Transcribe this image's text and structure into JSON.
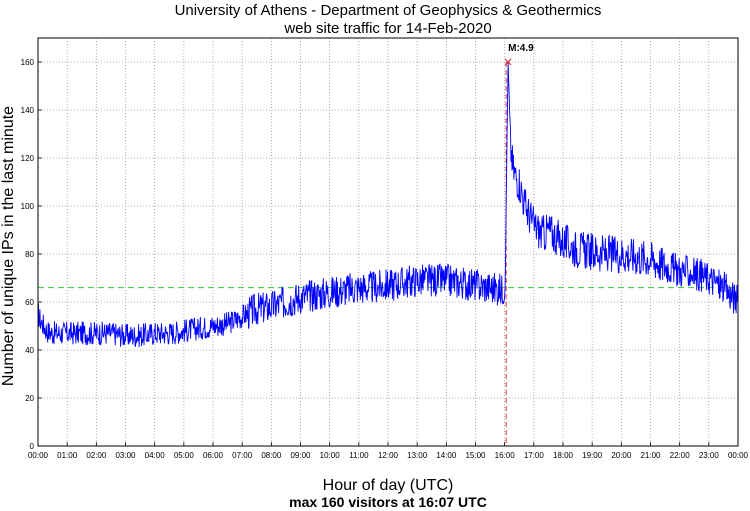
{
  "chart_data": {
    "type": "line",
    "title_lines": [
      "University of Athens - Department of Geophysics & Geothermics",
      "web site traffic for 14-Feb-2020"
    ],
    "xlabel": "Hour of day (UTC)",
    "ylabel": "Number of unique IPs in the last minute",
    "footer": "max 160 visitors at 16:07 UTC",
    "x_unit": "hour",
    "xlim": [
      0,
      24
    ],
    "ylim": [
      0,
      170
    ],
    "x_tick_labels": [
      "00:00",
      "01:00",
      "02:00",
      "03:00",
      "04:00",
      "05:00",
      "06:00",
      "07:00",
      "08:00",
      "09:00",
      "10:00",
      "11:00",
      "12:00",
      "13:00",
      "14:00",
      "15:00",
      "16:00",
      "17:00",
      "18:00",
      "19:00",
      "20:00",
      "21:00",
      "22:00",
      "23:00",
      "00:00"
    ],
    "y_ticks": [
      0,
      20,
      40,
      60,
      80,
      100,
      120,
      140,
      160
    ],
    "grid": true,
    "average_line": {
      "value": 66,
      "color": "#33cc33"
    },
    "earthquake_marker": {
      "x": 16.05,
      "label": "M:4.9",
      "color": "#e03030"
    },
    "max_point": {
      "x": 16.117,
      "y": 160
    },
    "series": [
      {
        "color": "#0000ff",
        "x": [
          0,
          0.1,
          0.3,
          0.5,
          1,
          1.5,
          2,
          2.5,
          3,
          3.5,
          4,
          4.5,
          5,
          5.5,
          6,
          6.5,
          7,
          7.5,
          8,
          8.5,
          9,
          9.5,
          10,
          10.5,
          11,
          11.5,
          12,
          12.5,
          13,
          13.5,
          14,
          14.5,
          15,
          15.5,
          15.9,
          16.0,
          16.05,
          16.1,
          16.117,
          16.15,
          16.2,
          16.3,
          16.4,
          16.5,
          16.7,
          17,
          17.3,
          17.5,
          17.8,
          18,
          18.5,
          19,
          19.5,
          20,
          20.5,
          21,
          21.5,
          22,
          22.5,
          23,
          23.5,
          24
        ],
        "y": [
          55,
          52,
          48,
          47,
          47,
          47,
          47,
          47,
          46,
          46,
          47,
          47,
          48,
          49,
          50,
          51,
          54,
          57,
          58,
          60,
          62,
          63,
          64,
          65,
          66,
          66,
          67,
          68,
          69,
          69,
          69,
          68,
          67,
          66,
          65,
          66,
          95,
          150,
          160,
          145,
          125,
          115,
          112,
          110,
          100,
          92,
          88,
          90,
          87,
          85,
          82,
          81,
          80,
          80,
          79,
          78,
          75,
          73,
          72,
          70,
          66,
          60
        ]
      }
    ]
  }
}
